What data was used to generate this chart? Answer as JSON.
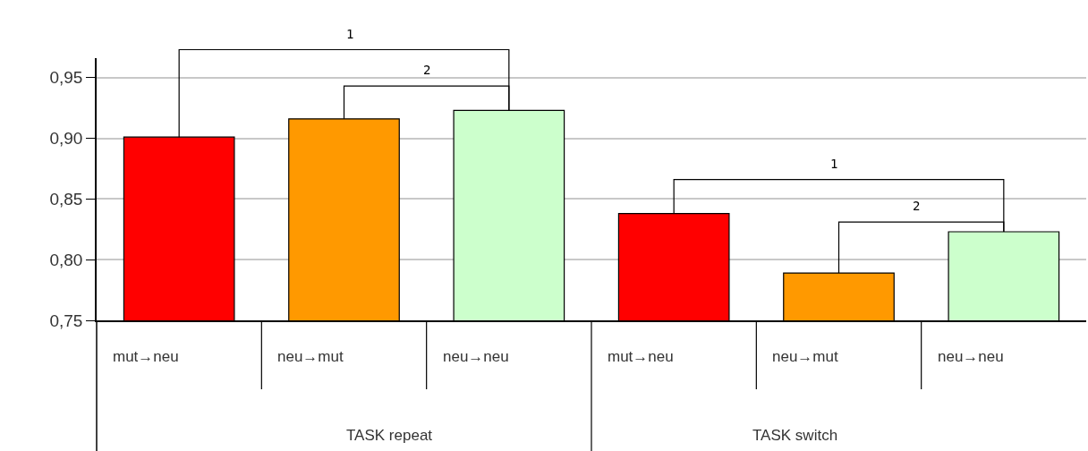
{
  "chart_data": {
    "type": "bar",
    "categories": [
      "mut→neu",
      "neu→mut",
      "neu→neu",
      "mut→neu",
      "neu→mut",
      "neu→neu"
    ],
    "values": [
      0.901,
      0.916,
      0.923,
      0.838,
      0.789,
      0.823
    ],
    "colors": [
      "#ff0000",
      "#ff9900",
      "#ccffcc",
      "#ff0000",
      "#ff9900",
      "#ccffcc"
    ],
    "ylim": [
      0.75,
      0.966
    ],
    "yticks": [
      {
        "value": 0.75,
        "label": "0,75"
      },
      {
        "value": 0.8,
        "label": "0,80"
      },
      {
        "value": 0.85,
        "label": "0,85"
      },
      {
        "value": 0.9,
        "label": "0,90"
      },
      {
        "value": 0.95,
        "label": "0,95"
      }
    ],
    "grid": "y",
    "annotations": [
      "TASK repeat",
      "TASK switch",
      "1",
      "2",
      "1",
      "2"
    ]
  }
}
